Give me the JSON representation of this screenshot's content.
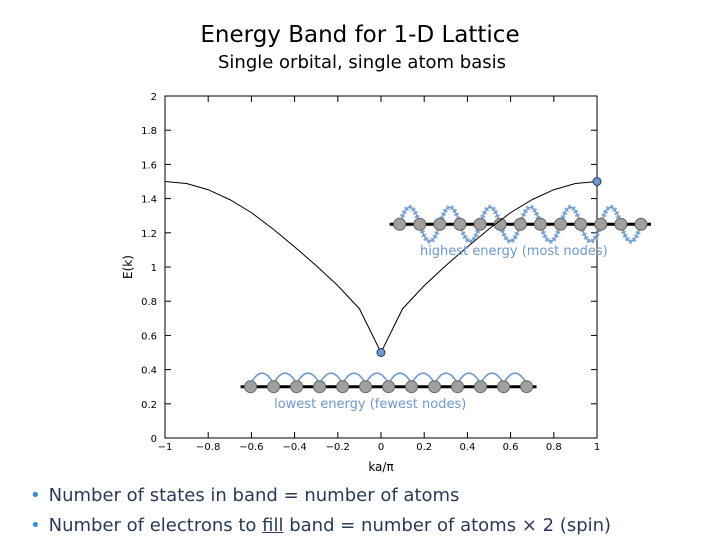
{
  "header": {
    "title": "Energy Band for 1-D Lattice",
    "subtitle": "Single orbital, single atom basis"
  },
  "chart_data": {
    "type": "line",
    "title": "Energy Band for 1-D Lattice",
    "subtitle": "Single orbital, single atom basis",
    "xlabel": "ka/π",
    "ylabel": "E(k)",
    "xlim": [
      -1,
      1
    ],
    "ylim": [
      0,
      2
    ],
    "xticks": [
      -1,
      -0.8,
      -0.6,
      -0.4,
      -0.2,
      0,
      0.2,
      0.4,
      0.6,
      0.8,
      1
    ],
    "xtick_labels": [
      "−1",
      "−0.8",
      "−0.6",
      "−0.4",
      "−0.2",
      "0",
      "0.2",
      "0.4",
      "0.6",
      "0.8",
      "1"
    ],
    "yticks": [
      0,
      0.2,
      0.4,
      0.6,
      0.8,
      1,
      1.2,
      1.4,
      1.6,
      1.8,
      2
    ],
    "ytick_labels": [
      "0",
      "0.2",
      "0.4",
      "0.6",
      "0.8",
      "1",
      "1.2",
      "1.4",
      "1.6",
      "1.8",
      "2"
    ],
    "grid": false,
    "series": [
      {
        "x": [
          -1,
          -0.9,
          -0.8,
          -0.7,
          -0.6,
          -0.5,
          -0.4,
          -0.3,
          -0.2,
          -0.1,
          0,
          0.1,
          0.2,
          0.3,
          0.4,
          0.5,
          0.6,
          0.7,
          0.8,
          0.9,
          1
        ],
        "y": [
          1.5,
          1.488,
          1.452,
          1.394,
          1.318,
          1.222,
          1.118,
          1.008,
          0.891,
          0.756,
          0.5,
          0.756,
          0.891,
          1.008,
          1.118,
          1.222,
          1.318,
          1.394,
          1.452,
          1.488,
          1.5
        ],
        "color": "#000000"
      }
    ],
    "markers": [
      {
        "x": 0,
        "y": 0.5,
        "color": "#6f98c8"
      },
      {
        "x": 1,
        "y": 1.5,
        "color": "#6f98c8"
      }
    ],
    "annotations": [
      {
        "text": "highest energy (most nodes)",
        "x": 0.615,
        "y": 1.07,
        "color": "#6f98c8"
      },
      {
        "text": "lowest energy (fewest nodes)",
        "x": -0.05,
        "y": 0.175,
        "color": "#6f98c8"
      }
    ],
    "lattice_insets": [
      {
        "name": "high-energy-lattice",
        "x_start": 0.04,
        "x_end": 1.25,
        "y": 1.25,
        "atoms": 13,
        "mode": "alternating"
      },
      {
        "name": "low-energy-lattice",
        "x_start": -0.65,
        "x_end": 0.72,
        "y": 0.3,
        "atoms": 13,
        "mode": "uniform"
      }
    ]
  },
  "bullets": {
    "b1": "Number of states in band = number of atoms",
    "b2_pre": "Number of electrons to ",
    "b2_u": "fill",
    "b2_post": " band = number of atoms × 2 (spin)",
    "bullet_glyph": "•"
  }
}
